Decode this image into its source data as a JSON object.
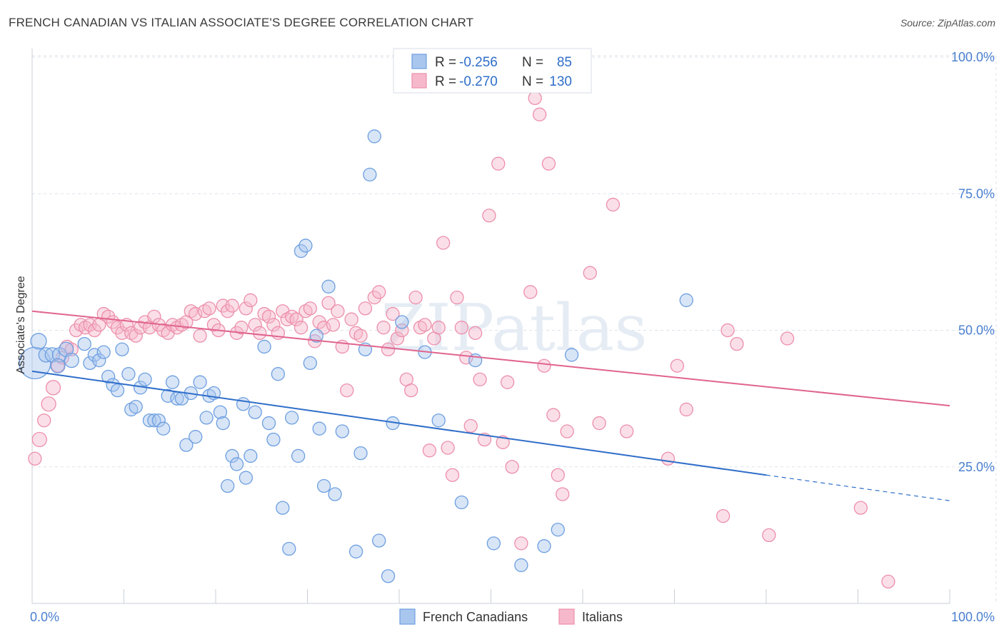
{
  "title": "FRENCH CANADIAN VS ITALIAN ASSOCIATE'S DEGREE CORRELATION CHART",
  "source": "Source: ZipAtlas.com",
  "watermark": "ZIPatlas",
  "colors": {
    "blue_fill": "#a9c6ee",
    "blue_stroke": "#6d9fe0",
    "blue_line": "#2f6ec9",
    "pink_fill": "#f6b9cb",
    "pink_stroke": "#ec8fab",
    "pink_line": "#e0648e",
    "grid": "#dde3ea",
    "axis_text": "#4a7fd0"
  },
  "legend": {
    "rows": [
      {
        "r_label": "R =",
        "r_value": "-0.256",
        "n_label": "N =",
        "n_value": "85",
        "series": "blue"
      },
      {
        "r_label": "R =",
        "r_value": "-0.270",
        "n_label": "N =",
        "n_value": "130",
        "series": "pink"
      }
    ]
  },
  "bottom_legend": [
    {
      "label": "French Canadians",
      "series": "blue"
    },
    {
      "label": "Italians",
      "series": "pink"
    }
  ],
  "chart_data": {
    "type": "scatter",
    "title": "FRENCH CANADIAN VS ITALIAN ASSOCIATE'S DEGREE CORRELATION CHART",
    "xlabel": "",
    "ylabel": "Associate's Degree",
    "xlim": [
      0,
      100
    ],
    "ylim": [
      0,
      105
    ],
    "x_tick_labels": [
      "0.0%",
      "100.0%"
    ],
    "y_ticks": [
      25,
      50,
      75,
      100
    ],
    "y_tick_labels": [
      "25.0%",
      "50.0%",
      "75.0%",
      "100.0%"
    ],
    "grid": true,
    "legend_position": "top-center",
    "series": [
      {
        "name": "French Canadians",
        "color": "blue",
        "trend": {
          "x": [
            0,
            80
          ],
          "y": [
            42.5,
            23.5
          ],
          "dashed_to": [
            100,
            18.8
          ]
        },
        "points": [
          [
            0.3,
            44,
            22
          ],
          [
            0.7,
            48,
            11
          ],
          [
            1.5,
            45.5,
            10
          ],
          [
            2.2,
            45.5,
            10
          ],
          [
            3,
            45.5,
            10
          ],
          [
            3.7,
            46.5,
            10
          ],
          [
            2.8,
            43.5,
            10
          ],
          [
            4.3,
            44.5,
            10
          ],
          [
            5.7,
            47.5,
            9
          ],
          [
            6.3,
            44,
            9
          ],
          [
            6.8,
            45.5,
            9
          ],
          [
            7.3,
            44.5,
            9
          ],
          [
            7.8,
            46,
            9
          ],
          [
            8.3,
            41.5,
            9
          ],
          [
            8.8,
            40,
            9
          ],
          [
            9.3,
            39,
            9
          ],
          [
            9.8,
            46.5,
            9
          ],
          [
            10.5,
            42,
            9
          ],
          [
            10.8,
            35.5,
            9
          ],
          [
            11.3,
            36,
            9
          ],
          [
            11.8,
            39.5,
            9
          ],
          [
            12.3,
            41,
            9
          ],
          [
            12.8,
            33.5,
            9
          ],
          [
            13.3,
            33.5,
            9
          ],
          [
            13.8,
            33.5,
            9
          ],
          [
            14.3,
            32,
            9
          ],
          [
            14.8,
            38,
            9
          ],
          [
            15.3,
            40.5,
            9
          ],
          [
            15.8,
            37.5,
            9
          ],
          [
            16.3,
            37.5,
            9
          ],
          [
            16.8,
            29,
            9
          ],
          [
            17.3,
            38.5,
            9
          ],
          [
            17.8,
            30.5,
            9
          ],
          [
            18.3,
            40.5,
            9
          ],
          [
            19.0,
            34,
            9
          ],
          [
            19.3,
            38,
            9
          ],
          [
            19.8,
            38.5,
            9
          ],
          [
            20.5,
            35,
            9
          ],
          [
            20.8,
            33,
            9
          ],
          [
            21.3,
            21.5,
            9
          ],
          [
            21.8,
            27,
            9
          ],
          [
            22.3,
            25.5,
            9
          ],
          [
            23.0,
            36.5,
            9
          ],
          [
            23.3,
            23,
            9
          ],
          [
            23.8,
            27,
            9
          ],
          [
            24.3,
            35,
            9
          ],
          [
            25.3,
            47,
            9
          ],
          [
            25.8,
            33,
            9
          ],
          [
            26.3,
            30,
            9
          ],
          [
            26.8,
            42,
            9
          ],
          [
            27.3,
            17.5,
            9
          ],
          [
            28.0,
            10,
            9
          ],
          [
            28.3,
            34,
            9
          ],
          [
            29.0,
            27,
            9
          ],
          [
            29.3,
            64.5,
            9
          ],
          [
            29.8,
            65.5,
            9
          ],
          [
            30.3,
            44,
            9
          ],
          [
            31.0,
            49,
            9
          ],
          [
            31.3,
            32,
            9
          ],
          [
            31.8,
            21.5,
            9
          ],
          [
            32.3,
            58,
            9
          ],
          [
            33.0,
            20,
            9
          ],
          [
            33.8,
            31.5,
            9
          ],
          [
            35.3,
            9.5,
            9
          ],
          [
            35.8,
            27.5,
            9
          ],
          [
            36.3,
            46.5,
            9
          ],
          [
            36.8,
            78.5,
            9
          ],
          [
            37.3,
            85.5,
            9
          ],
          [
            37.8,
            11.5,
            9
          ],
          [
            38.8,
            5,
            9
          ],
          [
            39.3,
            33,
            9
          ],
          [
            40.3,
            51.5,
            9
          ],
          [
            42.8,
            46,
            9
          ],
          [
            44.3,
            33.5,
            9
          ],
          [
            46.8,
            18.5,
            9
          ],
          [
            48.3,
            44.5,
            9
          ],
          [
            50.3,
            11,
            9
          ],
          [
            53.3,
            7,
            9
          ],
          [
            55.8,
            10.5,
            9
          ],
          [
            57.3,
            13.5,
            9
          ],
          [
            58.8,
            45.5,
            9
          ],
          [
            71.3,
            55.5,
            9
          ]
        ]
      },
      {
        "name": "Italians",
        "color": "pink",
        "trend": {
          "x": [
            0,
            100
          ],
          "y": [
            53.5,
            36.2
          ]
        },
        "points": [
          [
            0.3,
            26.5,
            9
          ],
          [
            0.8,
            30,
            10
          ],
          [
            1.3,
            33.5,
            9
          ],
          [
            1.8,
            36.5,
            10
          ],
          [
            2.3,
            39.5,
            10
          ],
          [
            2.8,
            43.5,
            9
          ],
          [
            3.3,
            45,
            9
          ],
          [
            3.8,
            47,
            9
          ],
          [
            4.3,
            46.5,
            9
          ],
          [
            4.8,
            50,
            9
          ],
          [
            5.3,
            51,
            9
          ],
          [
            5.8,
            50.5,
            9
          ],
          [
            6.3,
            51,
            9
          ],
          [
            6.8,
            50,
            9
          ],
          [
            7.3,
            51,
            9
          ],
          [
            7.8,
            53,
            9
          ],
          [
            8.3,
            52.5,
            9
          ],
          [
            8.8,
            51.5,
            9
          ],
          [
            9.3,
            50.5,
            9
          ],
          [
            9.8,
            49.5,
            9
          ],
          [
            10.3,
            51,
            9
          ],
          [
            10.8,
            49.5,
            9
          ],
          [
            11.3,
            49,
            9
          ],
          [
            11.8,
            50.5,
            9
          ],
          [
            12.3,
            51.5,
            9
          ],
          [
            12.8,
            50.5,
            9
          ],
          [
            13.3,
            52.5,
            9
          ],
          [
            13.8,
            51,
            9
          ],
          [
            14.3,
            50,
            9
          ],
          [
            14.8,
            49.5,
            9
          ],
          [
            15.3,
            51,
            9
          ],
          [
            15.8,
            50.5,
            9
          ],
          [
            16.3,
            51,
            9
          ],
          [
            16.8,
            51.5,
            9
          ],
          [
            17.3,
            53.5,
            9
          ],
          [
            17.8,
            53,
            9
          ],
          [
            18.3,
            49,
            9
          ],
          [
            18.8,
            53.5,
            9
          ],
          [
            19.3,
            54,
            9
          ],
          [
            19.8,
            51,
            9
          ],
          [
            20.3,
            50,
            9
          ],
          [
            20.8,
            54.5,
            9
          ],
          [
            21.3,
            53.5,
            9
          ],
          [
            21.8,
            54.5,
            9
          ],
          [
            22.3,
            49.5,
            9
          ],
          [
            22.8,
            50.5,
            9
          ],
          [
            23.3,
            54,
            9
          ],
          [
            23.8,
            55.5,
            9
          ],
          [
            24.3,
            51,
            9
          ],
          [
            24.8,
            49.5,
            9
          ],
          [
            25.3,
            53,
            9
          ],
          [
            25.8,
            52.5,
            9
          ],
          [
            26.3,
            51,
            9
          ],
          [
            26.8,
            49.5,
            9
          ],
          [
            27.3,
            53.5,
            9
          ],
          [
            27.8,
            52,
            9
          ],
          [
            28.3,
            52.5,
            9
          ],
          [
            28.8,
            52,
            9
          ],
          [
            29.3,
            50.5,
            9
          ],
          [
            29.8,
            53.5,
            9
          ],
          [
            30.3,
            54,
            9
          ],
          [
            30.8,
            48,
            9
          ],
          [
            31.3,
            51.5,
            9
          ],
          [
            31.8,
            50.5,
            9
          ],
          [
            32.3,
            55,
            9
          ],
          [
            32.8,
            51,
            9
          ],
          [
            33.3,
            53.5,
            9
          ],
          [
            33.8,
            47,
            9
          ],
          [
            34.3,
            39,
            9
          ],
          [
            34.8,
            52,
            9
          ],
          [
            35.3,
            49.5,
            9
          ],
          [
            35.8,
            49,
            9
          ],
          [
            36.3,
            54,
            9
          ],
          [
            37.3,
            56,
            9
          ],
          [
            37.8,
            57,
            9
          ],
          [
            38.3,
            50.5,
            9
          ],
          [
            38.8,
            46.5,
            9
          ],
          [
            39.3,
            53,
            9
          ],
          [
            39.8,
            48.5,
            9
          ],
          [
            40.3,
            50,
            9
          ],
          [
            40.8,
            41,
            9
          ],
          [
            41.3,
            39,
            9
          ],
          [
            41.8,
            56,
            9
          ],
          [
            42.3,
            50.5,
            9
          ],
          [
            42.8,
            51,
            9
          ],
          [
            43.3,
            28,
            9
          ],
          [
            43.8,
            48.5,
            9
          ],
          [
            44.3,
            50.5,
            9
          ],
          [
            44.8,
            66,
            9
          ],
          [
            45.3,
            28.5,
            9
          ],
          [
            45.8,
            23.5,
            9
          ],
          [
            46.3,
            56,
            9
          ],
          [
            46.8,
            50.5,
            9
          ],
          [
            47.3,
            45,
            9
          ],
          [
            47.8,
            32.5,
            9
          ],
          [
            48.3,
            49.5,
            9
          ],
          [
            48.8,
            41,
            9
          ],
          [
            49.3,
            30,
            9
          ],
          [
            49.8,
            71,
            9
          ],
          [
            50.8,
            80.5,
            9
          ],
          [
            51.3,
            29.5,
            9
          ],
          [
            51.8,
            40.5,
            9
          ],
          [
            52.3,
            25,
            9
          ],
          [
            53.3,
            11,
            9
          ],
          [
            54.3,
            57,
            9
          ],
          [
            54.8,
            92.5,
            9
          ],
          [
            55.3,
            89.5,
            9
          ],
          [
            55.8,
            43.5,
            9
          ],
          [
            56.3,
            80.5,
            9
          ],
          [
            56.8,
            34.5,
            9
          ],
          [
            57.3,
            23.5,
            9
          ],
          [
            57.8,
            20,
            9
          ],
          [
            58.3,
            31.5,
            9
          ],
          [
            60.8,
            60.5,
            9
          ],
          [
            61.8,
            33,
            9
          ],
          [
            63.3,
            73,
            9
          ],
          [
            64.8,
            31.5,
            9
          ],
          [
            69.3,
            26.5,
            9
          ],
          [
            70.3,
            43.5,
            9
          ],
          [
            71.3,
            35.5,
            9
          ],
          [
            75.3,
            16,
            9
          ],
          [
            75.8,
            50,
            9
          ],
          [
            76.8,
            47.5,
            9
          ],
          [
            80.3,
            12.5,
            9
          ],
          [
            82.3,
            48.5,
            9
          ],
          [
            90.3,
            17.5,
            9
          ],
          [
            93.3,
            4,
            9
          ]
        ]
      }
    ]
  }
}
